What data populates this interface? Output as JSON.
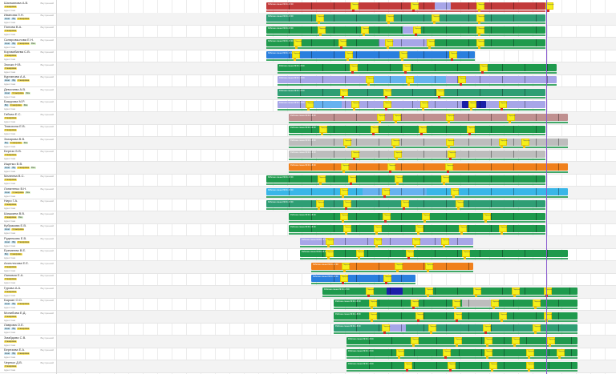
{
  "colors": {
    "red": "#c23b3b",
    "green": "#1f9a4d",
    "teal": "#2e9e74",
    "blue": "#2a7fde",
    "lavender": "#a7a6e8",
    "lightblue": "#66b2f0",
    "cyan": "#39b6e8",
    "gray": "#bdbdbd",
    "orange": "#f0801c",
    "rose": "#c09090",
    "darkblue": "#1a1fa8",
    "yellow": "#f4ef1a",
    "purple_line": "#8a5bd0"
  },
  "employees": [
    {
      "name": "Шахманова А.В.",
      "status": "Внутренний",
      "tags": [
        "Стажировка"
      ],
      "sub": "Адрес: Киев"
    },
    {
      "name": "Иванова Л.Н.",
      "status": "Внутренний",
      "tags": [
        "Агент",
        "ВЦ",
        "Стажировка"
      ],
      "sub": "Адрес: Киев"
    },
    {
      "name": "Попова В.А.",
      "status": "Внутренний",
      "tags": [
        "Стажировка"
      ],
      "sub": "Адрес: Киев"
    },
    {
      "name": "Склярова-нова Е.Н.",
      "status": "Внутренний",
      "tags": [
        "Агент",
        "ВЦ",
        "Стажировка",
        "Фин"
      ],
      "sub": "Адрес: Киев"
    },
    {
      "name": "Коргамбаева С.В.",
      "status": "Внутренний",
      "tags": [
        "Стажировка"
      ],
      "sub": "Адрес: Киев"
    },
    {
      "name": "Засько Н.В.",
      "status": "Внутренний",
      "tags": [
        "Стажировка"
      ],
      "sub": "Адрес: Киев"
    },
    {
      "name": "Курганова А.А.",
      "status": "Внутренний",
      "tags": [
        "Агент",
        "ВЦ",
        "Стажировка"
      ],
      "sub": "Адрес: Киев"
    },
    {
      "name": "Демочева А.В.",
      "status": "Внутренний",
      "tags": [
        "Агент",
        "Стажировка",
        "Фин"
      ],
      "sub": "Адрес: Киев"
    },
    {
      "name": "Бакурова М.Р.",
      "status": "Внутренний",
      "tags": [
        "ВЦ",
        "Стажировка",
        "Фин"
      ],
      "sub": "Адрес: Киев"
    },
    {
      "name": "Гибкая Е.С.",
      "status": "Внутренний",
      "tags": [
        "Стажировка"
      ],
      "sub": "Адрес: Киев"
    },
    {
      "name": "Тимохина Е.В.",
      "status": "Внутренний",
      "tags": [
        "Стажировка"
      ],
      "sub": "Адрес: Киев"
    },
    {
      "name": "Захарова В.В.",
      "status": "Внутренний",
      "tags": [
        "ВЦ",
        "Стажировка",
        "Фин"
      ],
      "sub": "Адрес: Киев"
    },
    {
      "name": "Березо Б.В.",
      "status": "Внутренний",
      "tags": [
        "Стажировка"
      ],
      "sub": "Адрес: Киев"
    },
    {
      "name": "Ищенко В.В.",
      "status": "",
      "tags": [
        "Агент",
        "ВЦ",
        "Стажировка",
        "Фин"
      ],
      "sub": "Адрес: Киев"
    },
    {
      "name": "Малеева В.С.",
      "status": "Внутренний",
      "tags": [
        "Стажировка"
      ],
      "sub": "Адрес: Киев"
    },
    {
      "name": "Лопатенко В.Н.",
      "status": "Внутренний",
      "tags": [
        "Агент",
        "Стажировка",
        "Фин"
      ],
      "sub": "Адрес: Киев"
    },
    {
      "name": "Ниро Г.А.",
      "status": "Внутренний",
      "tags": [
        "Стажировка"
      ],
      "sub": "Адрес: Киев"
    },
    {
      "name": "Шишкина В.В.",
      "status": "Внутренний",
      "tags": [
        "Стажировка",
        "Фин"
      ],
      "sub": "Адрес: Киев"
    },
    {
      "name": "Кубракова Е.В.",
      "status": "Внутренний",
      "tags": [
        "Агент",
        "Стажировка"
      ],
      "sub": "Адрес: Киев"
    },
    {
      "name": "Руденкова Е.В.",
      "status": "Внутренний",
      "tags": [
        "Агент",
        "ВЦ",
        "Стажировка"
      ],
      "sub": "Адрес: Киев"
    },
    {
      "name": "Еремеева В.Е.",
      "status": "Внутренний",
      "tags": [
        "ВЦ",
        "Стажировка"
      ],
      "sub": "Адрес: Киев"
    },
    {
      "name": "Ахиллесова Е.Е.",
      "status": "Внутренний",
      "tags": [
        "Стажировка"
      ],
      "sub": "Адрес: Киев"
    },
    {
      "name": "Лановая Е.А.",
      "status": "Внутренний",
      "tags": [
        "Стажировка"
      ],
      "sub": "Адрес: Киев"
    },
    {
      "name": "Гурова А.А.",
      "status": "Внутренний",
      "tags": [
        "Стажировка"
      ],
      "sub": "Адрес: Киев"
    },
    {
      "name": "Баркан О.О.",
      "status": "Внутренний",
      "tags": [
        "Агент",
        "ВЦ",
        "Стажировка"
      ],
      "sub": "Адрес: Киев"
    },
    {
      "name": "Монибова Е.Д.",
      "status": "Внутренний",
      "tags": [
        "Стажировка"
      ],
      "sub": "Адрес: Киев"
    },
    {
      "name": "Лаврова О.Е.",
      "status": "",
      "tags": [
        "Агент",
        "ВЦ",
        "Стажировка"
      ],
      "sub": "Адрес: Киев"
    },
    {
      "name": "Змайдова С.В.",
      "status": "Внутренний",
      "tags": [
        "Стажировка"
      ],
      "sub": "Адрес: Киев"
    },
    {
      "name": "Березова Е.А.",
      "status": "Внутренний",
      "tags": [
        "Агент",
        "ВЦ",
        "Стажировка"
      ],
      "sub": "Адрес: Киев"
    },
    {
      "name": "Черных Д.В.",
      "status": "Внутренний",
      "tags": [
        "Стажировка"
      ],
      "sub": "Адрес: Киев"
    }
  ],
  "shift_label": "Рабочая смена 09:00-18:00",
  "break_label": "Перерыв"
}
